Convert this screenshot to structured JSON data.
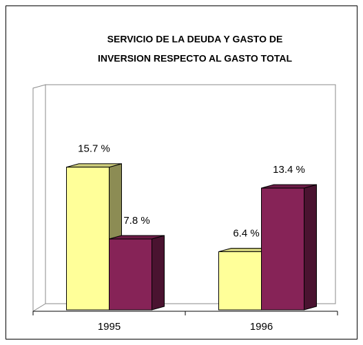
{
  "chart_data": {
    "type": "bar3d",
    "title": [
      "SERVICIO DE LA DEUDA Y GASTO DE",
      "INVERSION RESPECTO AL GASTO TOTAL"
    ],
    "categories": [
      "1995",
      "1996"
    ],
    "series": [
      {
        "color": "#ffff99",
        "values": [
          15.7,
          6.4
        ],
        "value_labels": [
          "15.7 %",
          "6.4 %"
        ]
      },
      {
        "color": "#862357",
        "values": [
          7.8,
          13.4
        ],
        "value_labels": [
          "7.8 %",
          "13.4 %"
        ]
      }
    ],
    "ylim": [
      0,
      25
    ]
  }
}
